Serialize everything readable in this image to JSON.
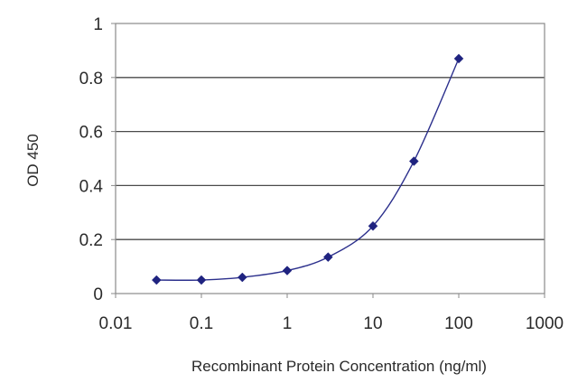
{
  "chart_data": {
    "type": "line",
    "title": "",
    "xlabel": "Recombinant Protein Concentration (ng/ml)",
    "ylabel": "OD 450",
    "x_scale": "log",
    "xlim": [
      0.01,
      1000
    ],
    "ylim": [
      0,
      1
    ],
    "x_ticks": [
      "0.01",
      "0.1",
      "1",
      "10",
      "100",
      "1000"
    ],
    "y_ticks": [
      "0",
      "0.2",
      "0.4",
      "0.6",
      "0.8",
      "1"
    ],
    "grid": "horizontal",
    "legend": "none",
    "series": [
      {
        "color": "#2b2f8c",
        "marker": "diamond",
        "points": [
          {
            "x": 0.03,
            "y": 0.05
          },
          {
            "x": 0.1,
            "y": 0.05
          },
          {
            "x": 0.3,
            "y": 0.06
          },
          {
            "x": 1,
            "y": 0.085
          },
          {
            "x": 3,
            "y": 0.135
          },
          {
            "x": 10,
            "y": 0.25
          },
          {
            "x": 30,
            "y": 0.49
          },
          {
            "x": 100,
            "y": 0.87
          }
        ]
      }
    ]
  }
}
